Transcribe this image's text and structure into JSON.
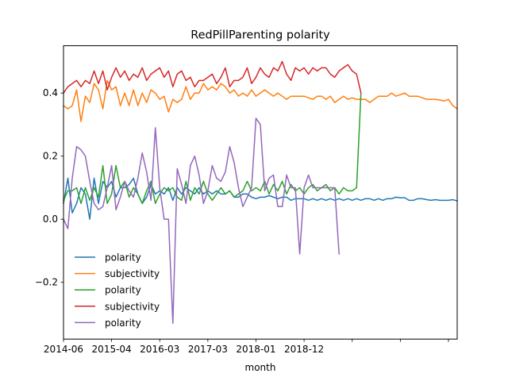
{
  "chart_data": {
    "type": "line",
    "title": "RedPillParenting polarity",
    "xlabel": "month",
    "ylabel": "",
    "x_tick_labels": [
      "2014-06",
      "2015-04",
      "2016-03",
      "2017-03",
      "2018-01",
      "2018-12",
      "",
      "",
      ""
    ],
    "x_tick_index": [
      0,
      11,
      22,
      33,
      44,
      55,
      66,
      77,
      88
    ],
    "y_ticks": [
      -0.2,
      0.0,
      0.2,
      0.4
    ],
    "y_tick_labels": [
      "−0.2",
      "0.0",
      "0.2",
      "0.4"
    ],
    "xlim": [
      0,
      90
    ],
    "ylim": [
      -0.38,
      0.55
    ],
    "grid": false,
    "legend_position": "lower-left",
    "series": [
      {
        "name": "polarity",
        "color": "#1f77b4",
        "x": [
          0,
          1,
          2,
          3,
          4,
          5,
          6,
          7,
          8,
          9,
          10,
          11,
          12,
          13,
          14,
          15,
          16,
          17,
          18,
          19,
          20,
          21,
          22,
          23,
          24,
          25,
          26,
          27,
          28,
          29,
          30,
          31,
          32,
          33,
          34,
          35,
          36,
          37,
          38,
          39,
          40,
          41,
          42,
          43,
          44,
          45,
          46,
          47,
          48,
          49,
          50,
          51,
          52,
          53,
          54,
          55,
          56,
          57,
          58,
          59,
          60,
          61,
          62,
          63,
          64,
          65,
          66,
          67,
          68,
          69,
          70,
          71,
          72,
          73,
          74,
          75,
          76,
          77,
          78,
          79,
          80,
          81,
          82,
          83,
          84,
          85,
          86,
          87,
          88,
          89,
          90
        ],
        "values": [
          0.05,
          0.13,
          0.02,
          0.05,
          0.1,
          0.08,
          0.0,
          0.13,
          0.05,
          0.12,
          0.1,
          0.12,
          0.07,
          0.1,
          0.1,
          0.11,
          0.13,
          0.08,
          0.05,
          0.07,
          0.11,
          0.08,
          0.09,
          0.08,
          0.1,
          0.06,
          0.1,
          0.08,
          0.1,
          0.09,
          0.08,
          0.1,
          0.08,
          0.09,
          0.08,
          0.09,
          0.08,
          0.08,
          0.09,
          0.07,
          0.07,
          0.08,
          0.08,
          0.07,
          0.065,
          0.07,
          0.07,
          0.075,
          0.07,
          0.065,
          0.07,
          0.07,
          0.06,
          0.065,
          0.065,
          0.065,
          0.06,
          0.065,
          0.06,
          0.065,
          0.06,
          0.065,
          0.06,
          0.065,
          0.06,
          0.065,
          0.06,
          0.065,
          0.06,
          0.065,
          0.065,
          0.06,
          0.065,
          0.06,
          0.065,
          0.065,
          0.07,
          0.068,
          0.068,
          0.06,
          0.06,
          0.065,
          0.065,
          0.062,
          0.06,
          0.062,
          0.06,
          0.06,
          0.06,
          0.062,
          0.058
        ]
      },
      {
        "name": "subjectivity",
        "color": "#ff7f0e",
        "x": [
          0,
          1,
          2,
          3,
          4,
          5,
          6,
          7,
          8,
          9,
          10,
          11,
          12,
          13,
          14,
          15,
          16,
          17,
          18,
          19,
          20,
          21,
          22,
          23,
          24,
          25,
          26,
          27,
          28,
          29,
          30,
          31,
          32,
          33,
          34,
          35,
          36,
          37,
          38,
          39,
          40,
          41,
          42,
          43,
          44,
          45,
          46,
          47,
          48,
          49,
          50,
          51,
          52,
          53,
          54,
          55,
          56,
          57,
          58,
          59,
          60,
          61,
          62,
          63,
          64,
          65,
          66,
          67,
          68,
          69,
          70,
          71,
          72,
          73,
          74,
          75,
          76,
          77,
          78,
          79,
          80,
          81,
          82,
          83,
          84,
          85,
          86,
          87,
          88,
          89,
          90
        ],
        "values": [
          0.36,
          0.35,
          0.36,
          0.41,
          0.31,
          0.39,
          0.37,
          0.43,
          0.41,
          0.35,
          0.44,
          0.41,
          0.42,
          0.36,
          0.4,
          0.36,
          0.41,
          0.36,
          0.4,
          0.37,
          0.41,
          0.4,
          0.38,
          0.39,
          0.34,
          0.38,
          0.37,
          0.38,
          0.42,
          0.38,
          0.4,
          0.4,
          0.43,
          0.41,
          0.42,
          0.41,
          0.43,
          0.42,
          0.4,
          0.41,
          0.39,
          0.4,
          0.39,
          0.41,
          0.39,
          0.4,
          0.41,
          0.4,
          0.39,
          0.4,
          0.39,
          0.38,
          0.39,
          0.39,
          0.39,
          0.39,
          0.385,
          0.38,
          0.39,
          0.39,
          0.38,
          0.39,
          0.37,
          0.38,
          0.39,
          0.38,
          0.385,
          0.38,
          0.38,
          0.38,
          0.37,
          0.38,
          0.39,
          0.39,
          0.39,
          0.4,
          0.39,
          0.395,
          0.4,
          0.39,
          0.39,
          0.39,
          0.385,
          0.38,
          0.38,
          0.38,
          0.378,
          0.375,
          0.38,
          0.36,
          0.35
        ]
      },
      {
        "name": "polarity",
        "color": "#2ca02c",
        "x": [
          0,
          1,
          2,
          3,
          4,
          5,
          6,
          7,
          8,
          9,
          10,
          11,
          12,
          13,
          14,
          15,
          16,
          17,
          18,
          19,
          20,
          21,
          22,
          23,
          24,
          25,
          26,
          27,
          28,
          29,
          30,
          31,
          32,
          33,
          34,
          35,
          36,
          37,
          38,
          39,
          40,
          41,
          42,
          43,
          44,
          45,
          46,
          47,
          48,
          49,
          50,
          51,
          52,
          53,
          54,
          55,
          56,
          57,
          58,
          59,
          60,
          61,
          62,
          63,
          64,
          65,
          66,
          67,
          68
        ],
        "values": [
          0.06,
          0.09,
          0.09,
          0.1,
          0.05,
          0.1,
          0.06,
          0.1,
          0.07,
          0.17,
          0.05,
          0.08,
          0.17,
          0.1,
          0.12,
          0.07,
          0.1,
          0.08,
          0.05,
          0.09,
          0.12,
          0.05,
          0.08,
          0.1,
          0.09,
          0.1,
          0.07,
          0.06,
          0.12,
          0.06,
          0.1,
          0.08,
          0.12,
          0.08,
          0.06,
          0.08,
          0.1,
          0.08,
          0.09,
          0.07,
          0.08,
          0.09,
          0.12,
          0.09,
          0.1,
          0.09,
          0.12,
          0.08,
          0.11,
          0.09,
          0.12,
          0.08,
          0.11,
          0.09,
          0.1,
          0.08,
          0.1,
          0.11,
          0.09,
          0.1,
          0.11,
          0.09,
          0.1,
          0.08,
          0.1,
          0.09,
          0.09,
          0.1,
          0.4
        ]
      },
      {
        "name": "subjectivity",
        "color": "#d62728",
        "x": [
          0,
          1,
          2,
          3,
          4,
          5,
          6,
          7,
          8,
          9,
          10,
          11,
          12,
          13,
          14,
          15,
          16,
          17,
          18,
          19,
          20,
          21,
          22,
          23,
          24,
          25,
          26,
          27,
          28,
          29,
          30,
          31,
          32,
          33,
          34,
          35,
          36,
          37,
          38,
          39,
          40,
          41,
          42,
          43,
          44,
          45,
          46,
          47,
          48,
          49,
          50,
          51,
          52,
          53,
          54,
          55,
          56,
          57,
          58,
          59,
          60,
          61,
          62,
          63,
          64,
          65,
          66,
          67,
          68
        ],
        "values": [
          0.4,
          0.42,
          0.43,
          0.44,
          0.42,
          0.44,
          0.43,
          0.47,
          0.43,
          0.47,
          0.41,
          0.45,
          0.48,
          0.45,
          0.47,
          0.44,
          0.46,
          0.45,
          0.48,
          0.44,
          0.46,
          0.47,
          0.48,
          0.45,
          0.47,
          0.42,
          0.46,
          0.47,
          0.44,
          0.45,
          0.42,
          0.44,
          0.44,
          0.45,
          0.46,
          0.43,
          0.45,
          0.48,
          0.42,
          0.44,
          0.44,
          0.45,
          0.48,
          0.43,
          0.45,
          0.48,
          0.46,
          0.45,
          0.48,
          0.47,
          0.5,
          0.46,
          0.44,
          0.48,
          0.47,
          0.48,
          0.46,
          0.48,
          0.47,
          0.48,
          0.48,
          0.46,
          0.45,
          0.47,
          0.48,
          0.49,
          0.47,
          0.46,
          0.4
        ]
      },
      {
        "name": "polarity",
        "color": "#9467bd",
        "x": [
          0,
          1,
          2,
          3,
          4,
          5,
          6,
          7,
          8,
          9,
          10,
          11,
          12,
          13,
          14,
          15,
          16,
          17,
          18,
          19,
          20,
          21,
          22,
          23,
          24,
          25,
          26,
          27,
          28,
          29,
          30,
          31,
          32,
          33,
          34,
          35,
          36,
          37,
          38,
          39,
          40,
          41,
          42,
          43,
          44,
          45,
          46,
          47,
          48,
          49,
          50,
          51,
          52,
          53,
          54,
          55,
          56,
          57,
          58,
          59,
          60,
          61,
          62,
          63
        ],
        "values": [
          0.0,
          -0.03,
          0.13,
          0.23,
          0.22,
          0.2,
          0.12,
          0.05,
          0.03,
          0.04,
          0.1,
          0.17,
          0.03,
          0.07,
          0.12,
          0.09,
          0.07,
          0.13,
          0.21,
          0.15,
          0.06,
          0.29,
          0.1,
          0.0,
          0.0,
          -0.33,
          0.16,
          0.11,
          0.05,
          0.17,
          0.2,
          0.14,
          0.05,
          0.09,
          0.17,
          0.13,
          0.12,
          0.15,
          0.23,
          0.18,
          0.1,
          0.04,
          0.07,
          0.1,
          0.32,
          0.3,
          0.09,
          0.13,
          0.14,
          0.04,
          0.04,
          0.14,
          0.1,
          0.1,
          -0.11,
          0.1,
          0.14,
          0.1,
          0.1,
          0.1,
          0.1,
          0.1,
          0.1,
          -0.11
        ]
      }
    ]
  }
}
